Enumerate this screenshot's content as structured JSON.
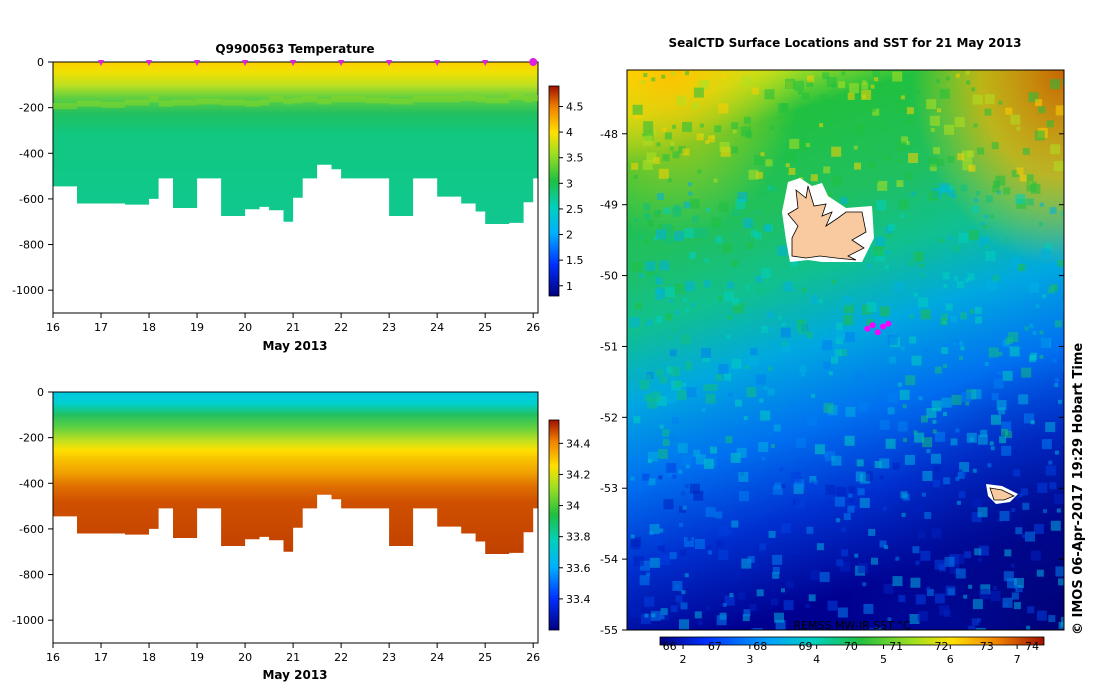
{
  "chart_data": [
    {
      "type": "heatmap",
      "title": "Q9900563  Temperature",
      "xlabel": "May 2013",
      "ylabel": "",
      "xlim": [
        16,
        26.1
      ],
      "ylim": [
        -1100,
        0
      ],
      "x_ticks": [
        "16",
        "17",
        "18",
        "19",
        "20",
        "21",
        "22",
        "23",
        "24",
        "25",
        "26"
      ],
      "y_ticks": [
        "0",
        "-200",
        "-400",
        "-600",
        "-800",
        "-1000"
      ],
      "colorbar": {
        "min": 0.8,
        "max": 4.9,
        "ticks": [
          "1",
          "1.5",
          "2",
          "2.5",
          "3",
          "3.5",
          "4",
          "4.5"
        ]
      },
      "profile_markers": [
        17,
        18,
        19,
        20,
        21,
        22,
        23,
        24,
        25,
        26
      ],
      "profiles": {
        "times": [
          16.0,
          16.5,
          17.0,
          17.5,
          18.0,
          18.2,
          18.5,
          19.0,
          19.5,
          20.0,
          20.3,
          20.5,
          20.8,
          21.0,
          21.2,
          21.5,
          21.8,
          22.0,
          22.5,
          23.0,
          23.5,
          24.0,
          24.5,
          24.8,
          25.0,
          25.5,
          25.8,
          26.0
        ],
        "max_depth": [
          -545,
          -620,
          -620,
          -625,
          -600,
          -510,
          -640,
          -510,
          -675,
          -645,
          -635,
          -650,
          -700,
          -595,
          -510,
          -450,
          -470,
          -510,
          -510,
          -675,
          -510,
          -590,
          -620,
          -655,
          -710,
          -705,
          -615,
          -510
        ],
        "mixed_layer_depth": [
          -180,
          -170,
          -175,
          -165,
          -150,
          -170,
          -165,
          -160,
          -165,
          -170,
          -165,
          -150,
          -160,
          -155,
          -150,
          -160,
          -150,
          -150,
          -155,
          -160,
          -150,
          -150,
          -145,
          -150,
          -155,
          -140,
          -150,
          -145
        ]
      }
    },
    {
      "type": "heatmap",
      "title": "",
      "xlabel": "May 2013",
      "ylabel": "",
      "xlim": [
        16,
        26.1
      ],
      "ylim": [
        -1100,
        0
      ],
      "x_ticks": [
        "16",
        "17",
        "18",
        "19",
        "20",
        "21",
        "22",
        "23",
        "24",
        "25",
        "26"
      ],
      "y_ticks": [
        "0",
        "-200",
        "-400",
        "-600",
        "-800",
        "-1000"
      ],
      "colorbar": {
        "min": 33.2,
        "max": 34.55,
        "ticks": [
          "33.4",
          "33.6",
          "33.8",
          "34",
          "34.2",
          "34.4"
        ]
      }
    },
    {
      "type": "heatmap",
      "title": "SealCTD Surface Locations and SST for 21 May 2013",
      "xlabel": "",
      "ylabel": "",
      "ylim": [
        -55,
        -47.1
      ],
      "y_ticks": [
        "-48",
        "-49",
        "-50",
        "-51",
        "-52",
        "-53",
        "-54",
        "-55"
      ],
      "colorbar_label": "REMSS MW-IR SST °C",
      "colorbar_ticks_c": [
        "2",
        "3",
        "4",
        "5",
        "6",
        "7"
      ],
      "colorbar_ticks_f": [
        "66",
        "67",
        "68",
        "69",
        "70",
        "71",
        "72",
        "73",
        "74"
      ],
      "islands": [
        {
          "lon_frac": 0.33,
          "lat": -49.5
        },
        {
          "lon_frac": 0.88,
          "lat": -53.1
        }
      ],
      "seal_locations_lat": [
        -50.75,
        -50.7,
        -50.8,
        -50.72,
        -50.68
      ]
    }
  ],
  "credit": "© IMOS 06-Apr-2017 19:29 Hobart Time"
}
